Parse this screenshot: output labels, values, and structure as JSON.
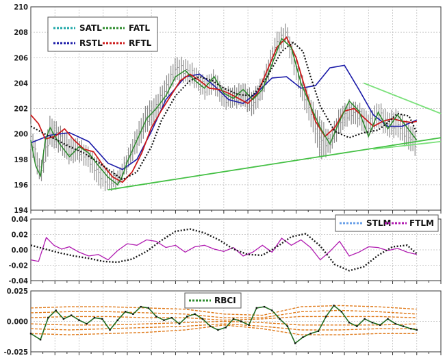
{
  "chart_data": [
    {
      "type": "line",
      "panel": "price",
      "title": "",
      "ylim": [
        194,
        210
      ],
      "yticks": [
        194,
        196,
        198,
        200,
        202,
        204,
        206,
        208,
        210
      ],
      "ytick_labels": [
        "194",
        "196",
        "198",
        "200",
        "202",
        "204",
        "206",
        "208",
        "210"
      ],
      "grid": true,
      "legend": {
        "position": "top-left",
        "entries": [
          "SATL",
          "FATL",
          "RSTL",
          "RFTL"
        ]
      },
      "colors": {
        "price_bars": "#8a8a8a",
        "SATL": "#1aa6a6",
        "FATL": "#2a8a2a",
        "RSTL": "#1a1aa8",
        "RFTL": "#cc1a1a",
        "trendlines": [
          "#44c044",
          "#7ae07a"
        ]
      },
      "series": [
        {
          "name": "SATL",
          "x": [
            0,
            12,
            25,
            40,
            55,
            75,
            95,
            110,
            125,
            135,
            150,
            165,
            175,
            188,
            200,
            215,
            230,
            245,
            260,
            272,
            282,
            290,
            300,
            315,
            330,
            345,
            360,
            370,
            380,
            392,
            400
          ],
          "values": [
            200.6,
            200.1,
            199.6,
            199.0,
            198.5,
            197.5,
            196.4,
            197.0,
            199.0,
            201.0,
            203.0,
            204.2,
            204.5,
            204.2,
            203.6,
            203.1,
            203.0,
            204.5,
            206.5,
            207.2,
            206.5,
            204.5,
            202.2,
            200.2,
            199.7,
            200.1,
            200.3,
            200.9,
            201.6,
            201.4,
            200.1
          ]
        },
        {
          "name": "FATL",
          "x": [
            0,
            5,
            10,
            15,
            20,
            25,
            30,
            40,
            50,
            60,
            70,
            80,
            90,
            95,
            100,
            110,
            120,
            130,
            140,
            150,
            160,
            170,
            180,
            190,
            200,
            210,
            220,
            230,
            240,
            250,
            260,
            270,
            280,
            290,
            300,
            310,
            320,
            330,
            340,
            350,
            360,
            370,
            380,
            390,
            400
          ],
          "values": [
            199.5,
            197.5,
            196.7,
            199.5,
            200.5,
            199.8,
            199.2,
            198.2,
            199.0,
            198.5,
            197.5,
            196.6,
            196.0,
            196.7,
            197.8,
            199.5,
            201.2,
            202.0,
            203.0,
            204.5,
            205.0,
            204.2,
            203.6,
            204.5,
            203.2,
            202.8,
            203.5,
            202.7,
            203.5,
            205.5,
            207.5,
            206.8,
            204.0,
            202.2,
            200.5,
            199.2,
            201.0,
            202.6,
            201.8,
            199.8,
            201.7,
            200.4,
            201.5,
            200.5,
            199.5
          ]
        },
        {
          "name": "RSTL",
          "x": [
            0,
            20,
            40,
            60,
            80,
            95,
            110,
            125,
            140,
            160,
            175,
            190,
            205,
            220,
            235,
            250,
            265,
            280,
            295,
            310,
            325,
            340,
            355,
            370,
            385,
            400
          ],
          "values": [
            199.3,
            199.9,
            200.1,
            199.4,
            197.7,
            197.2,
            198.0,
            200.2,
            202.7,
            204.5,
            204.7,
            203.8,
            202.7,
            202.4,
            203.3,
            204.4,
            204.5,
            203.6,
            203.8,
            205.2,
            205.4,
            203.5,
            201.5,
            200.6,
            200.6,
            201.1
          ]
        },
        {
          "name": "RFTL",
          "x": [
            0,
            8,
            15,
            25,
            35,
            45,
            55,
            65,
            75,
            85,
            95,
            105,
            115,
            125,
            135,
            145,
            155,
            165,
            175,
            185,
            195,
            205,
            215,
            225,
            235,
            245,
            255,
            265,
            275,
            285,
            295,
            305,
            315,
            325,
            335,
            345,
            355,
            365,
            375,
            385,
            395,
            400
          ],
          "values": [
            201.5,
            200.8,
            199.6,
            199.8,
            200.4,
            199.5,
            198.8,
            198.6,
            197.5,
            196.6,
            196.2,
            197.0,
            198.5,
            200.5,
            201.8,
            203.0,
            204.2,
            204.7,
            204.2,
            203.6,
            203.5,
            203.2,
            202.8,
            202.4,
            203.2,
            205.0,
            206.8,
            207.6,
            206.0,
            203.4,
            201.0,
            199.8,
            200.5,
            201.8,
            202.0,
            201.3,
            200.6,
            201.0,
            201.2,
            201.0,
            200.9,
            201.0
          ]
        }
      ],
      "ohlc_summary": {
        "x": [
          0,
          10,
          20,
          30,
          40,
          50,
          60,
          70,
          80,
          90,
          100,
          110,
          120,
          130,
          140,
          150,
          160,
          170,
          180,
          190,
          200,
          210,
          220,
          230,
          240,
          250,
          255,
          260,
          265,
          270,
          280,
          290,
          300,
          310,
          320,
          330,
          340,
          350,
          360,
          370,
          380,
          390,
          400
        ],
        "high": [
          200.8,
          197.6,
          201.4,
          200.6,
          199.7,
          199.6,
          198.9,
          197.9,
          197.2,
          197.0,
          198.6,
          200.5,
          202.3,
          203.0,
          204.4,
          206.0,
          205.9,
          205.3,
          204.4,
          205.0,
          203.6,
          203.7,
          204.0,
          203.3,
          204.5,
          206.8,
          208.0,
          208.3,
          208.7,
          207.3,
          204.8,
          202.8,
          201.3,
          200.0,
          202.0,
          202.6,
          202.4,
          201.6,
          202.5,
          201.7,
          201.9,
          200.9,
          200.2
        ],
        "low": [
          198.8,
          196.0,
          199.1,
          198.6,
          197.7,
          197.9,
          197.3,
          195.9,
          195.5,
          195.8,
          197.1,
          198.6,
          200.2,
          201.2,
          202.7,
          204.2,
          204.1,
          203.7,
          202.8,
          203.3,
          202.0,
          202.1,
          202.2,
          201.4,
          202.8,
          205.2,
          206.3,
          206.6,
          207.2,
          205.5,
          202.8,
          200.7,
          198.0,
          198.5,
          200.0,
          200.9,
          200.6,
          199.8,
          200.6,
          199.8,
          199.8,
          198.9,
          198.3
        ]
      },
      "trendlines": [
        {
          "x": [
            80,
            425
          ],
          "y": [
            195.6,
            199.7
          ]
        },
        {
          "x": [
            355,
            425
          ],
          "y": [
            198.8,
            199.4
          ]
        },
        {
          "x": [
            345,
            425
          ],
          "y": [
            204.0,
            201.6
          ]
        }
      ]
    },
    {
      "type": "line",
      "panel": "oscillator",
      "title": "",
      "ylim": [
        -0.04,
        0.04
      ],
      "yticks": [
        -0.04,
        -0.02,
        0.0,
        0.02,
        0.04
      ],
      "ytick_labels": [
        "-0.04",
        "-0.02",
        "0.00",
        "0.02",
        "0.04"
      ],
      "grid": true,
      "legend": {
        "position": "top-right",
        "entries": [
          "STLM",
          "FTLM"
        ]
      },
      "colors": {
        "STLM": "#1a1a1a",
        "FTLM": "#b01ab0",
        "legend_STLM_line": "#6aa0e8"
      },
      "series": [
        {
          "name": "STLM",
          "x": [
            0,
            15,
            30,
            45,
            60,
            75,
            90,
            105,
            120,
            135,
            150,
            165,
            180,
            195,
            210,
            225,
            240,
            255,
            270,
            285,
            300,
            315,
            330,
            345,
            360,
            375,
            390,
            400
          ],
          "values": [
            0.006,
            0.001,
            -0.004,
            -0.008,
            -0.011,
            -0.015,
            -0.016,
            -0.012,
            -0.002,
            0.012,
            0.024,
            0.027,
            0.022,
            0.013,
            0.001,
            -0.006,
            -0.007,
            0.004,
            0.017,
            0.021,
            0.005,
            -0.019,
            -0.027,
            -0.022,
            -0.007,
            0.004,
            0.006,
            -0.005
          ]
        },
        {
          "name": "FTLM",
          "x": [
            0,
            8,
            16,
            24,
            32,
            40,
            50,
            60,
            70,
            80,
            90,
            100,
            110,
            120,
            130,
            140,
            150,
            160,
            170,
            180,
            190,
            200,
            210,
            220,
            230,
            240,
            250,
            260,
            270,
            280,
            290,
            300,
            310,
            320,
            330,
            340,
            350,
            360,
            370,
            380,
            390,
            400
          ],
          "values": [
            -0.013,
            -0.015,
            0.016,
            0.006,
            0.001,
            0.004,
            -0.003,
            -0.008,
            -0.006,
            -0.013,
            -0.001,
            0.008,
            0.006,
            0.013,
            0.011,
            0.003,
            0.006,
            -0.003,
            0.004,
            0.006,
            0.001,
            -0.002,
            0.003,
            -0.008,
            -0.003,
            0.006,
            -0.003,
            0.015,
            0.006,
            0.013,
            0.003,
            -0.013,
            -0.002,
            0.011,
            -0.008,
            -0.003,
            0.004,
            0.003,
            -0.001,
            0.002,
            -0.003,
            -0.006
          ]
        }
      ]
    },
    {
      "type": "line",
      "panel": "rbci",
      "title": "",
      "ylim": [
        -0.025,
        0.025
      ],
      "yticks": [
        -0.025,
        0.0,
        0.025
      ],
      "ytick_labels": [
        "-0.025",
        "0.000",
        "0.025"
      ],
      "grid": true,
      "legend": {
        "position": "top-center",
        "entries": [
          "RBCI"
        ]
      },
      "colors": {
        "RBCI": "#1f6b1f",
        "RBCI_legend": "#2e8b2e",
        "bands": "#e07a1a"
      },
      "series": [
        {
          "name": "RBCI",
          "x": [
            0,
            10,
            18,
            26,
            34,
            42,
            50,
            58,
            66,
            74,
            82,
            90,
            98,
            106,
            114,
            122,
            130,
            138,
            146,
            154,
            162,
            170,
            178,
            186,
            194,
            202,
            210,
            218,
            226,
            234,
            242,
            250,
            258,
            266,
            274,
            282,
            290,
            298,
            306,
            314,
            322,
            330,
            338,
            346,
            354,
            362,
            370,
            378,
            386,
            394,
            400
          ],
          "values": [
            -0.01,
            -0.015,
            0.003,
            0.009,
            0.002,
            0.005,
            0.001,
            -0.002,
            0.003,
            0.002,
            -0.007,
            0.001,
            0.008,
            0.006,
            0.012,
            0.011,
            0.004,
            0.001,
            0.003,
            -0.002,
            0.004,
            0.006,
            0.002,
            -0.004,
            -0.007,
            -0.005,
            0.002,
            0.0,
            -0.003,
            0.011,
            0.012,
            0.009,
            0.002,
            -0.004,
            -0.018,
            -0.013,
            -0.01,
            -0.008,
            0.004,
            0.013,
            0.008,
            -0.001,
            -0.004,
            0.002,
            -0.001,
            -0.003,
            0.002,
            -0.002,
            -0.004,
            -0.006,
            -0.007
          ]
        }
      ],
      "bands": {
        "x": [
          0,
          40,
          80,
          120,
          160,
          200,
          240,
          280,
          320,
          360,
          400
        ],
        "upper_outer": [
          0.011,
          0.012,
          0.012,
          0.011,
          0.01,
          0.006,
          0.005,
          0.012,
          0.013,
          0.012,
          0.01
        ],
        "upper_mid": [
          0.007,
          0.008,
          0.008,
          0.007,
          0.006,
          0.003,
          0.003,
          0.008,
          0.009,
          0.008,
          0.006
        ],
        "upper_inner": [
          0.003,
          0.004,
          0.004,
          0.003,
          0.003,
          0.001,
          0.002,
          0.004,
          0.004,
          0.004,
          0.003
        ],
        "lower_inner": [
          -0.002,
          -0.003,
          -0.003,
          -0.002,
          -0.001,
          0.0,
          -0.001,
          -0.003,
          -0.003,
          -0.003,
          -0.002
        ],
        "lower_mid": [
          -0.006,
          -0.007,
          -0.006,
          -0.005,
          -0.004,
          -0.002,
          -0.004,
          -0.007,
          -0.007,
          -0.006,
          -0.006
        ],
        "lower_outer": [
          -0.01,
          -0.011,
          -0.01,
          -0.009,
          -0.007,
          -0.003,
          -0.006,
          -0.011,
          -0.011,
          -0.01,
          -0.01
        ]
      }
    }
  ]
}
